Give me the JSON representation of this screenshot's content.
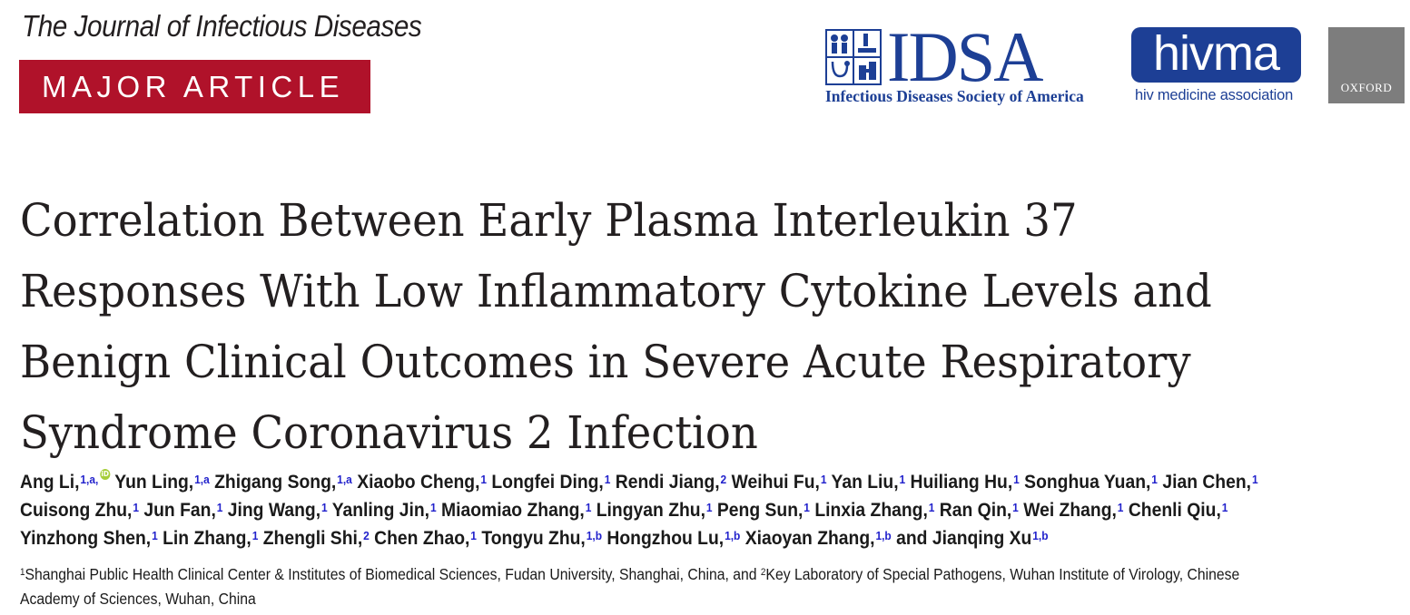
{
  "journal_name": "The Journal of Infectious Diseases",
  "article_type": "MAJOR ARTICLE",
  "logos": {
    "idsa_wordmark": "IDSA",
    "idsa_subtitle": "Infectious Diseases Society of America",
    "hivma_wordmark": "hivma",
    "hivma_subtitle": "hiv medicine association",
    "oxford_wordmark": "OXFORD"
  },
  "title_lines": [
    "Correlation Between Early Plasma Interleukin 37",
    "Responses With Low Inflammatory Cytokine Levels and",
    "Benign Clinical Outcomes in Severe Acute Respiratory",
    "Syndrome Coronavirus 2 Infection"
  ],
  "authors": {
    "line1": [
      {
        "name": "Ang Li,",
        "sup": "1,a,",
        "orcid": true
      },
      {
        "name": "Yun Ling,",
        "sup": "1,a"
      },
      {
        "name": "Zhigang Song,",
        "sup": "1,a"
      },
      {
        "name": "Xiaobo Cheng,",
        "sup": "1"
      },
      {
        "name": "Longfei Ding,",
        "sup": "1"
      },
      {
        "name": "Rendi Jiang,",
        "sup": "2"
      },
      {
        "name": "Weihui Fu,",
        "sup": "1"
      },
      {
        "name": "Yan Liu,",
        "sup": "1"
      },
      {
        "name": "Huiliang Hu,",
        "sup": "1"
      },
      {
        "name": "Songhua Yuan,",
        "sup": "1"
      },
      {
        "name": "Jian Chen,",
        "sup": "1"
      }
    ],
    "line2": [
      {
        "name": "Cuisong Zhu,",
        "sup": "1"
      },
      {
        "name": "Jun Fan,",
        "sup": "1"
      },
      {
        "name": "Jing Wang,",
        "sup": "1"
      },
      {
        "name": "Yanling Jin,",
        "sup": "1"
      },
      {
        "name": "Miaomiao Zhang,",
        "sup": "1"
      },
      {
        "name": "Lingyan Zhu,",
        "sup": "1"
      },
      {
        "name": "Peng Sun,",
        "sup": "1"
      },
      {
        "name": "Linxia Zhang,",
        "sup": "1"
      },
      {
        "name": "Ran Qin,",
        "sup": "1"
      },
      {
        "name": "Wei Zhang,",
        "sup": "1"
      },
      {
        "name": "Chenli Qiu,",
        "sup": "1"
      }
    ],
    "line3": [
      {
        "name": "Yinzhong Shen,",
        "sup": "1"
      },
      {
        "name": "Lin Zhang,",
        "sup": "1"
      },
      {
        "name": "Zhengli Shi,",
        "sup": "2"
      },
      {
        "name": "Chen Zhao,",
        "sup": "1"
      },
      {
        "name": "Tongyu Zhu,",
        "sup": "1,b"
      },
      {
        "name": "Hongzhou Lu,",
        "sup": "1,b"
      },
      {
        "name": "Xiaoyan Zhang,",
        "sup": "1,b"
      },
      {
        "name": "and Jianqing Xu",
        "sup": "1,b"
      }
    ]
  },
  "affiliations": {
    "sup1": "1",
    "text1": "Shanghai Public Health Clinical Center & Institutes of Biomedical Sciences, Fudan University, Shanghai, China, and ",
    "sup2": "2",
    "text2": "Key Laboratory of Special Pathogens, Wuhan Institute of Virology, Chinese",
    "text3": "Academy of Sciences, Wuhan, China"
  },
  "colors": {
    "banner_red": "#b0122a",
    "logo_blue": "#1d3f95",
    "oxford_gray": "#7d7d7d",
    "superscript_blue": "#2222cc",
    "orcid_green": "#a6ce39"
  }
}
